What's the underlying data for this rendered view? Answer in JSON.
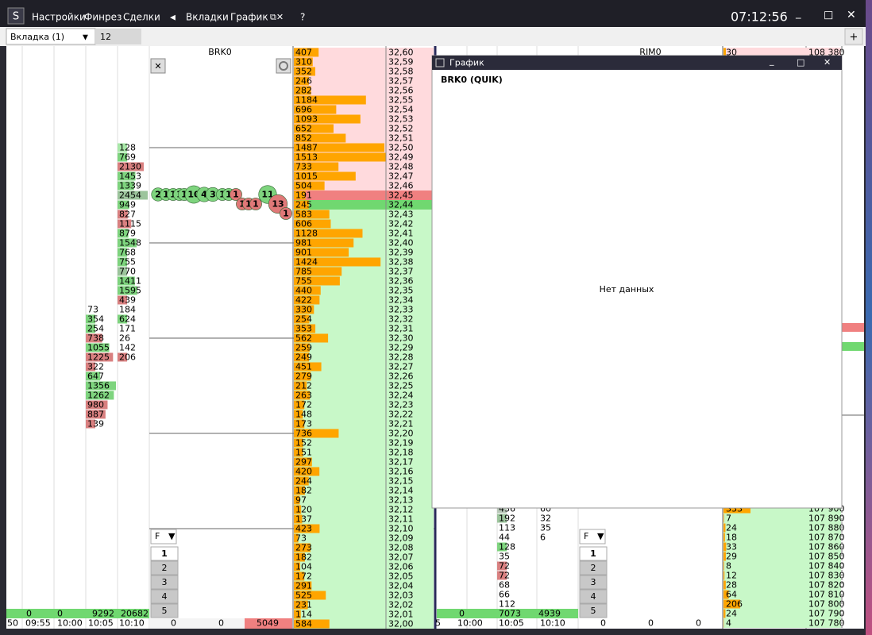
{
  "menu": [
    "Настройки",
    "Финрез",
    "Сделки",
    "Вкладки",
    "График",
    "?"
  ],
  "clock": "07:12:56",
  "tabs": {
    "active": "Вкладка (1)",
    "second": "12",
    "add": "+"
  },
  "order_book": {
    "title": "BRK0",
    "asks": [
      [
        "32,60",
        407
      ],
      [
        "32,59",
        310
      ],
      [
        "32,58",
        352
      ],
      [
        "32,57",
        246
      ],
      [
        "32,56",
        282
      ],
      [
        "32,55",
        1184
      ],
      [
        "32,54",
        696
      ],
      [
        "32,53",
        1093
      ],
      [
        "32,52",
        652
      ],
      [
        "32,51",
        852
      ],
      [
        "32,50",
        1487
      ],
      [
        "32,49",
        1513
      ],
      [
        "32,48",
        733
      ],
      [
        "32,47",
        1015
      ],
      [
        "32,46",
        504
      ],
      [
        "32,45",
        191
      ]
    ],
    "bids": [
      [
        "32,44",
        245
      ],
      [
        "32,43",
        583
      ],
      [
        "32,42",
        606
      ],
      [
        "32,41",
        1128
      ],
      [
        "32,40",
        981
      ],
      [
        "32,39",
        901
      ],
      [
        "32,38",
        1424
      ],
      [
        "32,37",
        785
      ],
      [
        "32,36",
        755
      ],
      [
        "32,35",
        440
      ],
      [
        "32,34",
        422
      ],
      [
        "32,33",
        330
      ],
      [
        "32,32",
        254
      ],
      [
        "32,31",
        353
      ],
      [
        "32,30",
        562
      ],
      [
        "32,29",
        259
      ],
      [
        "32,28",
        249
      ],
      [
        "32,27",
        451
      ],
      [
        "32,26",
        279
      ],
      [
        "32,25",
        212
      ],
      [
        "32,24",
        263
      ],
      [
        "32,23",
        172
      ],
      [
        "32,22",
        148
      ],
      [
        "32,21",
        173
      ],
      [
        "32,20",
        736
      ],
      [
        "32,19",
        152
      ],
      [
        "32,18",
        151
      ],
      [
        "32,17",
        297
      ],
      [
        "32,16",
        420
      ],
      [
        "32,15",
        244
      ],
      [
        "32,14",
        182
      ],
      [
        "32,13",
        97
      ],
      [
        "32,12",
        120
      ],
      [
        "32,11",
        137
      ],
      [
        "32,10",
        423
      ],
      [
        "32,09",
        73
      ],
      [
        "32,08",
        273
      ],
      [
        "32,07",
        182
      ],
      [
        "32,06",
        104
      ],
      [
        "32,05",
        172
      ],
      [
        "32,04",
        291
      ],
      [
        "32,03",
        525
      ],
      [
        "32,02",
        231
      ],
      [
        "32,01",
        114
      ],
      [
        "32,00",
        584
      ]
    ],
    "bottom": [
      0,
      0,
      5049
    ]
  },
  "clusters": {
    "columns": [
      {
        "values": [
          73,
          354,
          254,
          738,
          1055,
          1225,
          322,
          647,
          1356,
          1262,
          980,
          887,
          139
        ],
        "colors": [
          null,
          "#7ed47e",
          "#7ed47e",
          "#d98080",
          "#7ed47e",
          "#d98080",
          "#d98080",
          "#7ed47e",
          "#7ed47e",
          "#7ed47e",
          "#d98080",
          "#d98080",
          "#d98080"
        ]
      },
      {
        "values": [
          128,
          769,
          2130,
          1453,
          1339,
          2454,
          949,
          827,
          1115,
          879,
          1548,
          768,
          755,
          770,
          1411,
          1595,
          439,
          184,
          624,
          171,
          26,
          142,
          206
        ],
        "colors": [
          "#a8e8a8",
          "#7ed47e",
          "#d98080",
          "#7ed47e",
          "#7ed47e",
          "#9cc49c",
          "#7ed47e",
          "#d98080",
          "#d98080",
          "#7ed47e",
          "#7ed47e",
          "#7ed47e",
          "#7ed47e",
          "#9cc49c",
          "#7ed47e",
          "#7ed47e",
          "#d98080",
          null,
          "#7ed47e",
          null,
          null,
          null,
          "#d98080"
        ]
      }
    ],
    "totals": [
      0,
      0,
      9292,
      20682
    ],
    "times": [
      "50",
      "09:55",
      "10:00",
      "10:05",
      "10:10"
    ]
  },
  "bubbles": [
    {
      "v": 2,
      "color": "#7ed47e"
    },
    {
      "v": 1,
      "color": "#7ed47e"
    },
    {
      "v": 1,
      "color": "#7ed47e"
    },
    {
      "v": 1,
      "color": "#7ed47e"
    },
    {
      "v": 1,
      "color": "#7ed47e"
    },
    {
      "v": 10,
      "color": "#7ed47e"
    },
    {
      "v": 4,
      "color": "#7ed47e"
    },
    {
      "v": 3,
      "color": "#7ed47e"
    },
    {
      "v": 1,
      "color": "#7ed47e"
    },
    {
      "v": 1,
      "color": "#7ed47e"
    },
    {
      "v": 1,
      "color": "#e07878"
    },
    {
      "v": 1,
      "color": "#e07878"
    },
    {
      "v": 1,
      "color": "#e07878"
    },
    {
      "v": 1,
      "color": "#e07878"
    },
    {
      "v": 11,
      "color": "#7ed47e"
    },
    {
      "v": 13,
      "color": "#e07878"
    },
    {
      "v": 1,
      "color": "#e07878"
    }
  ],
  "filter": {
    "label": "F",
    "levels": [
      1,
      2,
      3,
      4,
      5
    ]
  },
  "middle": {
    "col1": [
      436,
      192,
      113,
      44,
      128,
      35,
      72,
      72,
      68,
      66,
      112
    ],
    "col1_colors": [
      "#b8c8b8",
      "#9cc49c",
      null,
      null,
      "#7ed47e",
      null,
      "#d98080",
      "#d98080",
      null,
      null,
      null
    ],
    "col2": [
      60,
      32,
      35,
      6
    ],
    "totals": [
      0,
      7073,
      4939
    ],
    "times": [
      "5",
      "10:00",
      "10:05",
      "10:10"
    ],
    "bottom": [
      0,
      0,
      0
    ]
  },
  "right": {
    "title": "RIM0",
    "top": [
      "108 380",
      30
    ],
    "rows": [
      [
        "107 900",
        333
      ],
      [
        "107 890",
        7
      ],
      [
        "107 880",
        24
      ],
      [
        "107 870",
        18
      ],
      [
        "107 860",
        33
      ],
      [
        "107 850",
        29
      ],
      [
        "107 840",
        8
      ],
      [
        "107 830",
        12
      ],
      [
        "107 820",
        28
      ],
      [
        "107 810",
        64
      ],
      [
        "107 800",
        206
      ],
      [
        "107 790",
        24
      ],
      [
        "107 780",
        4
      ]
    ]
  },
  "chart_window": {
    "title": "График",
    "instrument": "BRK0 (QUIK)",
    "message": "Нет данных"
  }
}
